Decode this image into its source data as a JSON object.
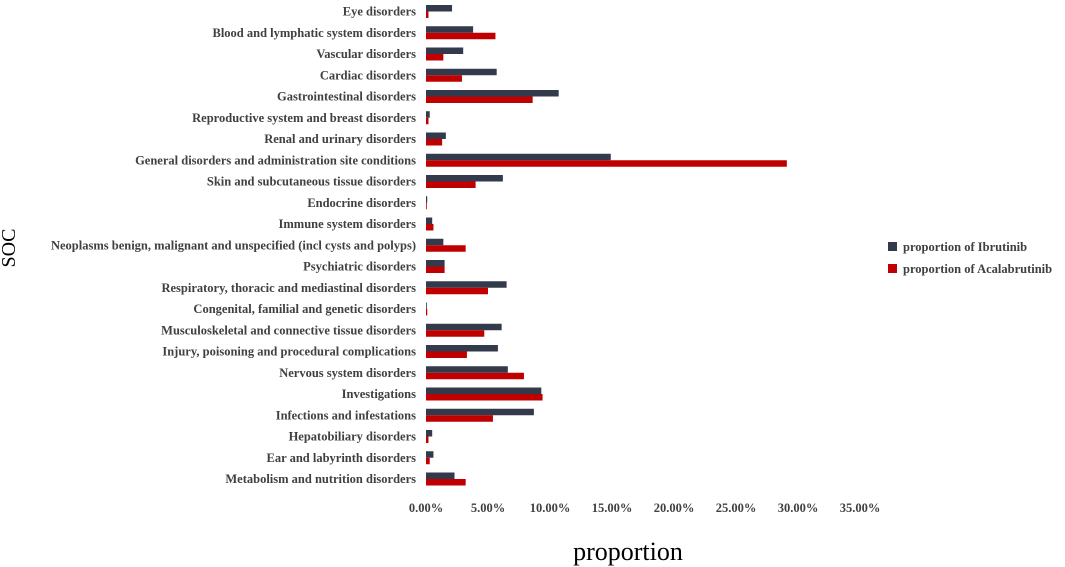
{
  "chart_data": {
    "type": "bar",
    "orientation": "horizontal",
    "title": "",
    "xlabel": "proportion",
    "ylabel": "SOC",
    "xlim": [
      0,
      0.35
    ],
    "xticks": [
      "0.00%",
      "5.00%",
      "10.00%",
      "15.00%",
      "20.00%",
      "25.00%",
      "30.00%",
      "35.00%"
    ],
    "grid": false,
    "legend_position": "right",
    "categories": [
      "Eye disorders",
      "Blood and lymphatic system disorders",
      "Vascular disorders",
      "Cardiac disorders",
      "Gastrointestinal disorders",
      "Reproductive system and breast disorders",
      "Renal and urinary disorders",
      "General disorders and administration site conditions",
      "Skin and subcutaneous tissue disorders",
      "Endocrine disorders",
      "Immune system disorders",
      "Neoplasms benign, malignant and unspecified (incl cysts and polyps)",
      "Psychiatric disorders",
      "Respiratory, thoracic and mediastinal disorders",
      "Congenital, familial and genetic disorders",
      "Musculoskeletal and connective tissue disorders",
      "Injury, poisoning and procedural complications",
      "Nervous system disorders",
      "Investigations",
      "Infections and infestations",
      "Hepatobiliary disorders",
      "Ear and labyrinth disorders",
      "Metabolism and nutrition disorders"
    ],
    "series": [
      {
        "name": "proportion of Ibrutinib",
        "color": "#333a4b",
        "values": [
          0.021,
          0.038,
          0.03,
          0.057,
          0.107,
          0.003,
          0.016,
          0.149,
          0.062,
          0.001,
          0.005,
          0.014,
          0.015,
          0.065,
          0.0003,
          0.061,
          0.058,
          0.066,
          0.093,
          0.087,
          0.005,
          0.006,
          0.023
        ]
      },
      {
        "name": "proportion of Acalabrutinib",
        "color": "#c00000",
        "values": [
          0.002,
          0.056,
          0.014,
          0.029,
          0.086,
          0.002,
          0.013,
          0.291,
          0.04,
          0.0,
          0.006,
          0.032,
          0.015,
          0.05,
          0.001,
          0.047,
          0.033,
          0.079,
          0.094,
          0.054,
          0.002,
          0.003,
          0.032
        ]
      }
    ]
  }
}
